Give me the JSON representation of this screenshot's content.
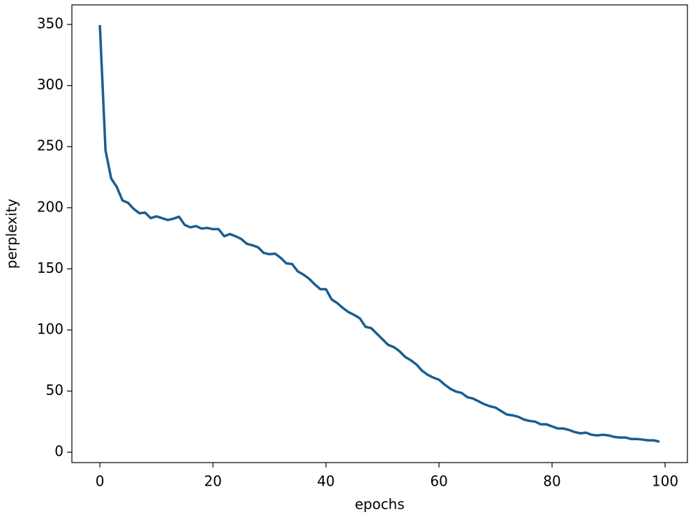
{
  "chart_data": {
    "type": "line",
    "x_label": "epochs",
    "y_label": "perplexity",
    "x": [
      0,
      1,
      2,
      3,
      4,
      5,
      6,
      7,
      8,
      9,
      10,
      11,
      12,
      13,
      14,
      15,
      16,
      17,
      18,
      19,
      20,
      21,
      22,
      23,
      24,
      25,
      26,
      27,
      28,
      29,
      30,
      31,
      32,
      33,
      34,
      35,
      36,
      37,
      38,
      39,
      40,
      41,
      42,
      43,
      44,
      45,
      46,
      47,
      48,
      49,
      50,
      51,
      52,
      53,
      54,
      55,
      56,
      57,
      58,
      59,
      60,
      61,
      62,
      63,
      64,
      65,
      66,
      67,
      68,
      69,
      70,
      71,
      72,
      73,
      74,
      75,
      76,
      77,
      78,
      79,
      80,
      81,
      82,
      83,
      84,
      85,
      86,
      87,
      88,
      89,
      90,
      91,
      92,
      93,
      94,
      95,
      96,
      97,
      98,
      99
    ],
    "series": [
      {
        "color": "#1a5e91",
        "values": [
          349.5,
          247,
          224,
          217,
          206,
          204,
          199,
          195.5,
          196,
          191.5,
          193,
          191.5,
          190,
          191,
          192.7,
          186,
          184,
          185,
          183,
          183.5,
          182.5,
          182.5,
          176.7,
          178.5,
          176.7,
          174.5,
          170.5,
          169.3,
          167.6,
          163,
          162,
          162.5,
          159,
          154.5,
          154,
          148,
          145.4,
          142,
          137.4,
          133.4,
          133.4,
          125,
          122,
          118,
          114.6,
          112.3,
          109.5,
          102.6,
          101.5,
          97,
          92.4,
          87.8,
          86,
          82.7,
          78,
          75.3,
          71.8,
          66.7,
          63.3,
          61,
          59.3,
          55.3,
          51.9,
          49.6,
          48.5,
          45,
          43.9,
          41.6,
          39.3,
          37.6,
          36.5,
          33.6,
          30.8,
          30.2,
          29,
          26.8,
          25.6,
          25,
          22.8,
          22.8,
          21.1,
          19.4,
          19.4,
          18.2,
          16.5,
          15.4,
          16,
          14.3,
          13.7,
          14.3,
          13.7,
          12.5,
          12,
          12,
          10.8,
          10.8,
          10.3,
          9.7,
          9.7,
          8.6
        ]
      }
    ],
    "xlim": [
      -4.95,
      103.95
    ],
    "ylim": [
      -8.5,
      366
    ],
    "xticks": [
      0,
      20,
      40,
      60,
      80,
      100
    ],
    "yticks": [
      0,
      50,
      100,
      150,
      200,
      250,
      300,
      350
    ],
    "grid": false
  }
}
